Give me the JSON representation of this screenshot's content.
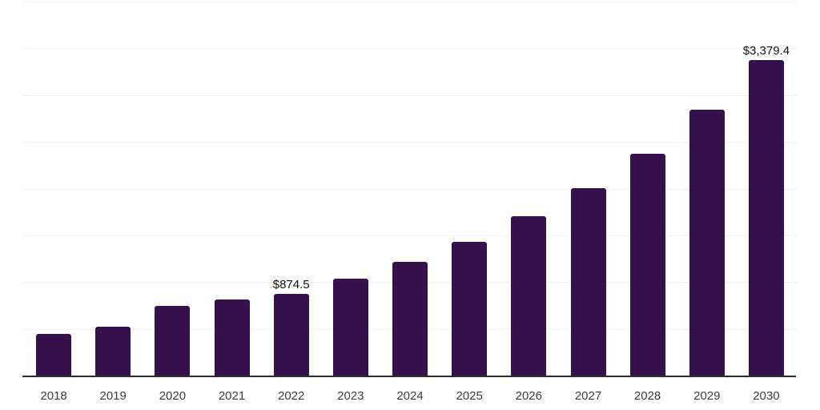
{
  "chart_data": {
    "type": "bar",
    "title": "",
    "xlabel": "",
    "ylabel": "",
    "categories": [
      "2018",
      "2019",
      "2020",
      "2021",
      "2022",
      "2023",
      "2024",
      "2025",
      "2026",
      "2027",
      "2028",
      "2029",
      "2030"
    ],
    "values": [
      448,
      527,
      746,
      815,
      874.5,
      1034,
      1219,
      1434,
      1701,
      2005,
      2376,
      2840,
      3379.4
    ],
    "value_labels": [
      "",
      "",
      "",
      "",
      "$874.5",
      "",
      "",
      "",
      "",
      "",
      "",
      "",
      "$3,379.4"
    ],
    "ylim": [
      0,
      4000
    ],
    "grid_step": 500,
    "grid": true,
    "legend": "none",
    "colors": {
      "bar": "#36114B",
      "value_label": "#111111",
      "x_tick": "#3d3d3d",
      "gridline": "#efefef",
      "axis": "#2e2e2e",
      "background": "#ffffff"
    }
  }
}
